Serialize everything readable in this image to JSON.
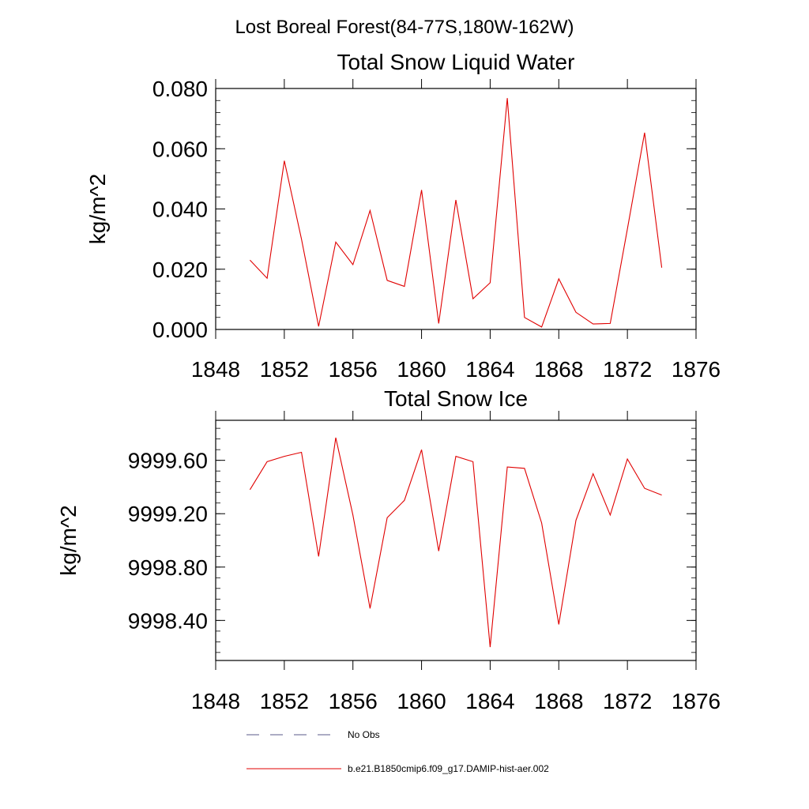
{
  "figure_title": "Lost Boreal Forest(84-77S,180W-162W)",
  "colors": {
    "series": "#e00000",
    "no_obs": "#5a5a8a",
    "axis": "#000000"
  },
  "legend": {
    "no_obs_label": "No Obs",
    "model_label": "b.e21.B1850cmip6.f09_g17.DAMIP-hist-aer.002"
  },
  "chart_data": [
    {
      "type": "line",
      "title": "Total Snow Liquid Water",
      "ylabel": "kg/m^2",
      "xlabel": "",
      "xlim": [
        1848,
        1876
      ],
      "ylim": [
        0.0,
        0.08
      ],
      "x_ticks": [
        "1848",
        "1852",
        "1856",
        "1860",
        "1864",
        "1868",
        "1872",
        "1876"
      ],
      "y_ticks": [
        "0.000",
        "0.020",
        "0.040",
        "0.060",
        "0.080"
      ],
      "y_tick_values": [
        0.0,
        0.02,
        0.04,
        0.06,
        0.08
      ],
      "grid": false,
      "series": [
        {
          "x": [
            1850,
            1851,
            1852,
            1853,
            1854,
            1855,
            1856,
            1857,
            1858,
            1859,
            1860,
            1861,
            1862,
            1863,
            1864,
            1865,
            1866,
            1867,
            1868,
            1869,
            1870,
            1871,
            1872,
            1873,
            1874
          ],
          "values": [
            0.023,
            0.017,
            0.056,
            0.03,
            0.001,
            0.029,
            0.0215,
            0.0395,
            0.0163,
            0.0143,
            0.0463,
            0.002,
            0.043,
            0.0102,
            0.0155,
            0.0768,
            0.004,
            0.0008,
            0.0168,
            0.0057,
            0.0018,
            0.002,
            0.0333,
            0.0653,
            0.0205
          ]
        }
      ]
    },
    {
      "type": "line",
      "title": "Total Snow Ice",
      "ylabel": "kg/m^2",
      "xlabel": "",
      "xlim": [
        1848,
        1876
      ],
      "ylim": [
        9998.1,
        9999.9
      ],
      "x_ticks": [
        "1848",
        "1852",
        "1856",
        "1860",
        "1864",
        "1868",
        "1872",
        "1876"
      ],
      "y_ticks": [
        "9998.40",
        "9998.80",
        "9999.20",
        "9999.60"
      ],
      "y_tick_values": [
        9998.4,
        9998.8,
        9999.2,
        9999.6
      ],
      "grid": false,
      "series": [
        {
          "x": [
            1850,
            1851,
            1852,
            1853,
            1854,
            1855,
            1856,
            1857,
            1858,
            1859,
            1860,
            1861,
            1862,
            1863,
            1864,
            1865,
            1866,
            1867,
            1868,
            1869,
            1870,
            1871,
            1872,
            1873,
            1874
          ],
          "values": [
            9999.38,
            9999.59,
            9999.63,
            9999.66,
            9998.88,
            9999.77,
            9999.19,
            9998.49,
            9999.17,
            9999.3,
            9999.68,
            9998.92,
            9999.63,
            9999.59,
            9998.2,
            9999.55,
            9999.54,
            9999.13,
            9998.37,
            9999.15,
            9999.5,
            9999.19,
            9999.61,
            9999.39,
            9999.34
          ]
        }
      ]
    }
  ]
}
